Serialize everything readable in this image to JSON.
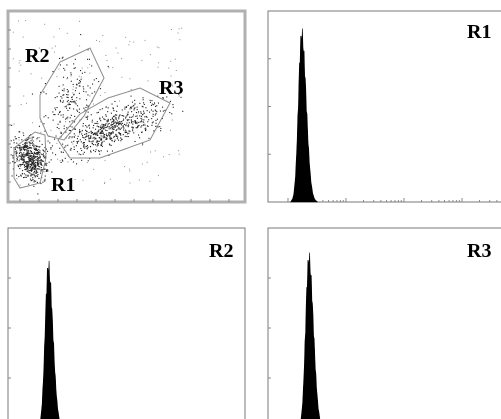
{
  "chart_data": [
    {
      "type": "scatter",
      "title": "",
      "xlabel": "",
      "ylabel": "",
      "grid": false,
      "gates": [
        {
          "name": "R1",
          "label": "R1"
        },
        {
          "name": "R2",
          "label": "R2"
        },
        {
          "name": "R3",
          "label": "R3"
        }
      ],
      "populations": [
        {
          "gate": "R1",
          "relative_density": "very high"
        },
        {
          "gate": "R2",
          "relative_density": "low"
        },
        {
          "gate": "R3",
          "relative_density": "high"
        }
      ]
    },
    {
      "type": "area",
      "label": "R1",
      "peak_position": 0.14,
      "peak_height": 0.87,
      "grid": false
    },
    {
      "type": "area",
      "label": "R2",
      "peak_position": 0.17,
      "peak_height": 0.8,
      "grid": false
    },
    {
      "type": "area",
      "label": "R3",
      "peak_position": 0.17,
      "peak_height": 0.84,
      "grid": false
    }
  ],
  "colors": {
    "fill": "#000000",
    "frame": "#7a7a7a",
    "gate": "#8c8c8c",
    "scatter_dots": "#222222"
  }
}
